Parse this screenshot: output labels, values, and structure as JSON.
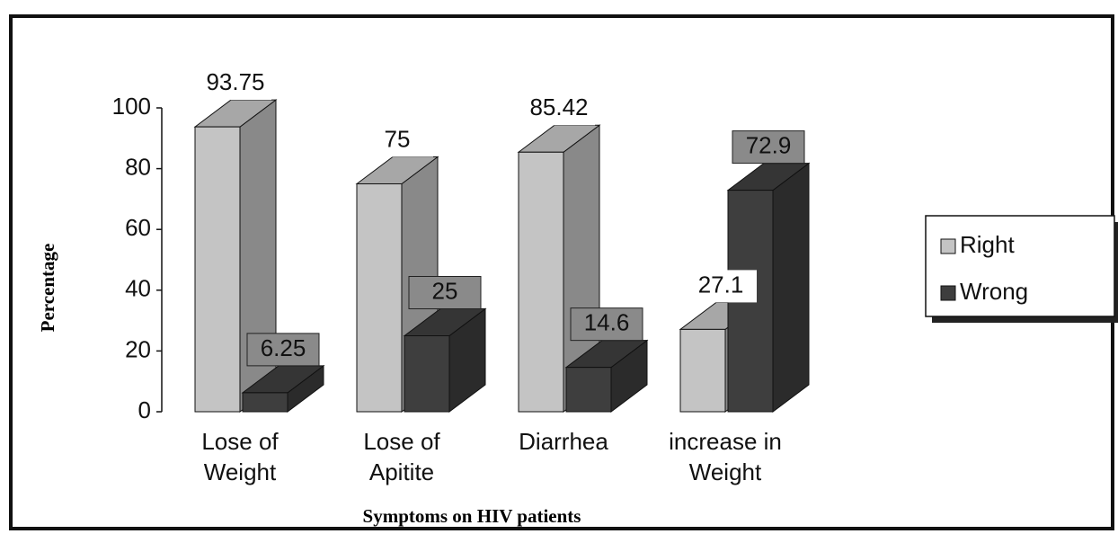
{
  "chart_data": {
    "type": "bar3d",
    "xlabel": "Symptoms on HIV patients",
    "ylabel": "Percentage",
    "categories": [
      "Lose of Weight",
      "Lose of Apitite",
      "Diarrhea",
      "increase in Weight"
    ],
    "series": [
      {
        "name": "Right",
        "color": "#c4c4c4",
        "values": [
          93.75,
          75,
          85.42,
          27.1
        ]
      },
      {
        "name": "Wrong",
        "color": "#3e3e3e",
        "values": [
          6.25,
          25,
          14.6,
          72.9
        ]
      }
    ],
    "ylim": [
      0,
      100
    ],
    "yticks": [
      0,
      20,
      40,
      60,
      80,
      100
    ],
    "legend": "right"
  }
}
